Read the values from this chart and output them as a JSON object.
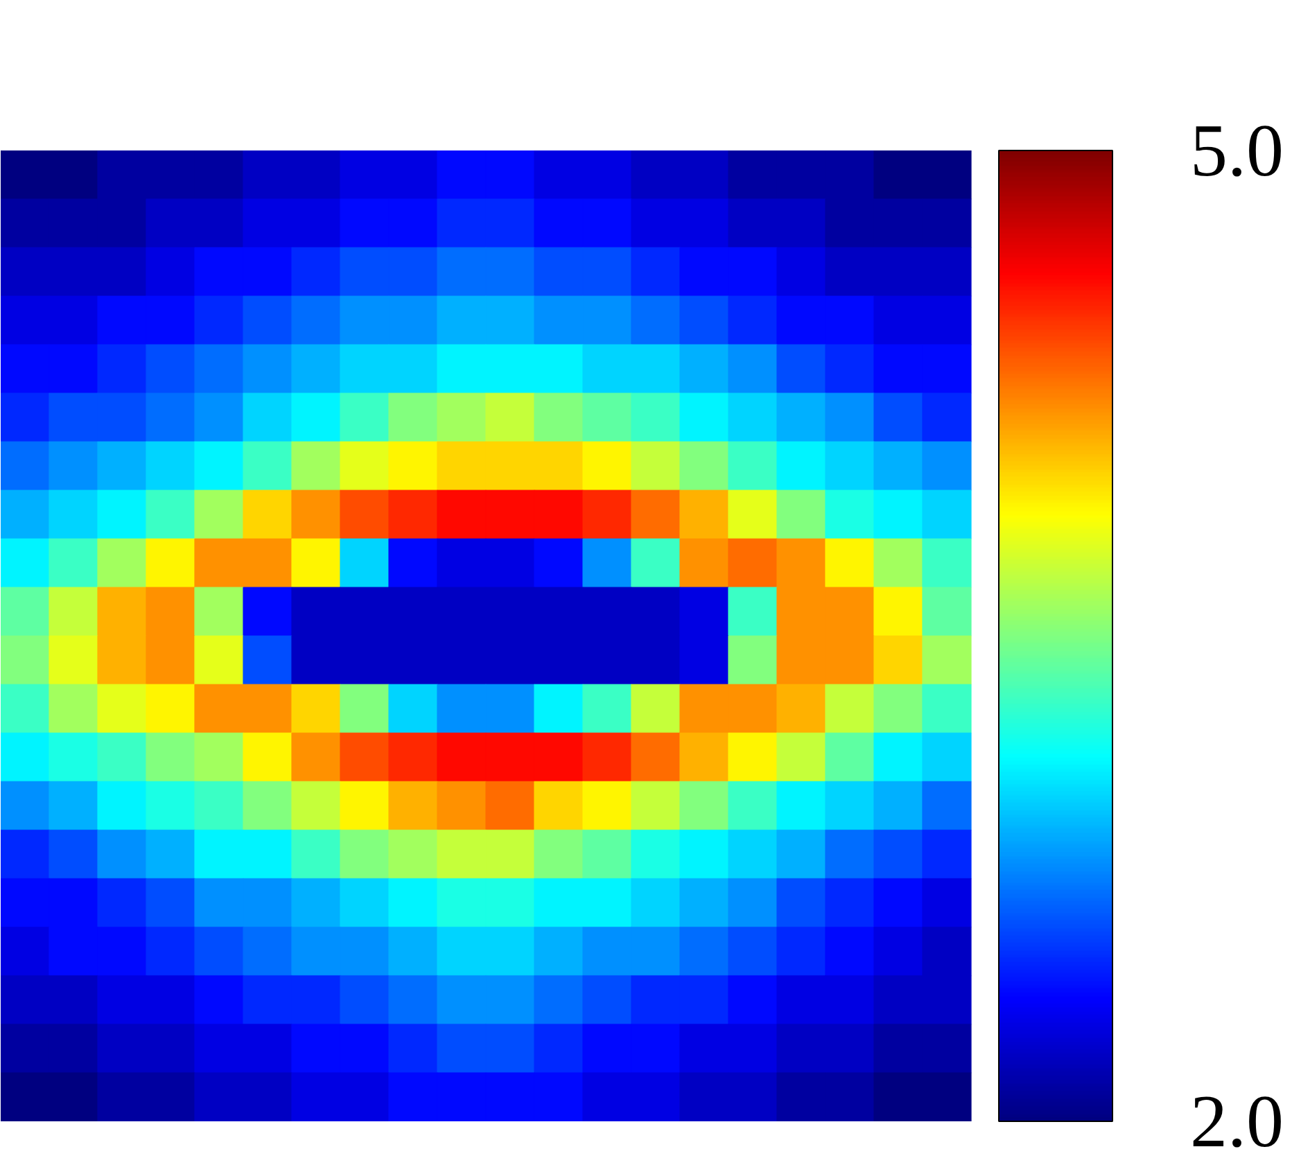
{
  "chart_data": {
    "type": "heatmap",
    "categories": [
      null,
      null,
      null,
      null,
      null,
      null,
      null,
      null,
      null,
      null,
      null,
      null,
      null,
      null,
      null,
      null,
      null,
      null,
      null,
      null
    ],
    "y_categories": [
      null,
      null,
      null,
      null,
      null,
      null,
      null,
      null,
      null,
      null,
      null,
      null,
      null,
      null,
      null,
      null,
      null,
      null,
      null,
      null
    ],
    "cells": [
      [
        2.0,
        2.0,
        2.1,
        2.1,
        2.1,
        2.2,
        2.2,
        2.3,
        2.3,
        2.4,
        2.4,
        2.3,
        2.3,
        2.2,
        2.2,
        2.1,
        2.1,
        2.1,
        2.0,
        2.0
      ],
      [
        2.1,
        2.1,
        2.1,
        2.2,
        2.2,
        2.3,
        2.3,
        2.4,
        2.4,
        2.5,
        2.5,
        2.4,
        2.4,
        2.3,
        2.3,
        2.2,
        2.2,
        2.1,
        2.1,
        2.1
      ],
      [
        2.2,
        2.2,
        2.2,
        2.3,
        2.4,
        2.4,
        2.5,
        2.6,
        2.6,
        2.7,
        2.7,
        2.6,
        2.6,
        2.5,
        2.4,
        2.4,
        2.3,
        2.2,
        2.2,
        2.2
      ],
      [
        2.3,
        2.3,
        2.4,
        2.4,
        2.5,
        2.6,
        2.7,
        2.8,
        2.8,
        2.9,
        2.9,
        2.8,
        2.8,
        2.7,
        2.6,
        2.5,
        2.4,
        2.4,
        2.3,
        2.3
      ],
      [
        2.4,
        2.4,
        2.5,
        2.6,
        2.7,
        2.8,
        2.9,
        3.0,
        3.0,
        3.1,
        3.1,
        3.1,
        3.0,
        3.0,
        2.9,
        2.8,
        2.6,
        2.5,
        2.4,
        2.4
      ],
      [
        2.5,
        2.6,
        2.6,
        2.7,
        2.8,
        3.0,
        3.1,
        3.3,
        3.5,
        3.6,
        3.7,
        3.5,
        3.4,
        3.3,
        3.1,
        3.0,
        2.9,
        2.8,
        2.6,
        2.5
      ],
      [
        2.7,
        2.8,
        2.9,
        3.0,
        3.1,
        3.3,
        3.6,
        3.8,
        3.9,
        4.0,
        4.0,
        4.0,
        3.9,
        3.7,
        3.5,
        3.3,
        3.1,
        3.0,
        2.9,
        2.8
      ],
      [
        2.9,
        3.0,
        3.1,
        3.3,
        3.6,
        4.0,
        4.2,
        4.4,
        4.5,
        4.6,
        4.6,
        4.6,
        4.5,
        4.3,
        4.1,
        3.8,
        3.5,
        3.2,
        3.1,
        3.0
      ],
      [
        3.1,
        3.3,
        3.6,
        3.9,
        4.2,
        4.2,
        3.9,
        3.0,
        2.4,
        2.3,
        2.3,
        2.4,
        2.8,
        3.3,
        4.2,
        4.3,
        4.2,
        3.9,
        3.6,
        3.3
      ],
      [
        3.4,
        3.7,
        4.1,
        4.2,
        3.6,
        2.4,
        2.2,
        2.2,
        2.2,
        2.2,
        2.2,
        2.2,
        2.2,
        2.2,
        2.3,
        3.3,
        4.2,
        4.2,
        3.9,
        3.4
      ],
      [
        3.5,
        3.8,
        4.1,
        4.2,
        3.8,
        2.6,
        2.2,
        2.2,
        2.2,
        2.2,
        2.2,
        2.2,
        2.2,
        2.2,
        2.3,
        3.5,
        4.2,
        4.2,
        4.0,
        3.6
      ],
      [
        3.3,
        3.6,
        3.8,
        3.9,
        4.2,
        4.2,
        4.0,
        3.5,
        3.0,
        2.8,
        2.8,
        3.1,
        3.3,
        3.7,
        4.2,
        4.2,
        4.1,
        3.7,
        3.5,
        3.3
      ],
      [
        3.1,
        3.2,
        3.3,
        3.5,
        3.6,
        3.9,
        4.2,
        4.4,
        4.5,
        4.6,
        4.6,
        4.6,
        4.5,
        4.3,
        4.1,
        3.9,
        3.7,
        3.4,
        3.1,
        3.0
      ],
      [
        2.8,
        2.9,
        3.1,
        3.2,
        3.3,
        3.5,
        3.7,
        3.9,
        4.1,
        4.2,
        4.3,
        4.0,
        3.9,
        3.7,
        3.5,
        3.3,
        3.1,
        3.0,
        2.9,
        2.7
      ],
      [
        2.5,
        2.6,
        2.8,
        2.9,
        3.1,
        3.1,
        3.3,
        3.5,
        3.6,
        3.7,
        3.7,
        3.5,
        3.4,
        3.2,
        3.1,
        3.0,
        2.9,
        2.7,
        2.6,
        2.5
      ],
      [
        2.4,
        2.4,
        2.5,
        2.6,
        2.8,
        2.8,
        2.9,
        3.0,
        3.1,
        3.2,
        3.2,
        3.1,
        3.1,
        3.0,
        2.9,
        2.8,
        2.6,
        2.5,
        2.4,
        2.3
      ],
      [
        2.3,
        2.4,
        2.4,
        2.5,
        2.6,
        2.7,
        2.8,
        2.8,
        2.9,
        3.0,
        3.0,
        2.9,
        2.8,
        2.8,
        2.7,
        2.6,
        2.5,
        2.4,
        2.3,
        2.2
      ],
      [
        2.2,
        2.2,
        2.3,
        2.3,
        2.4,
        2.5,
        2.5,
        2.6,
        2.7,
        2.8,
        2.8,
        2.7,
        2.6,
        2.5,
        2.5,
        2.4,
        2.3,
        2.3,
        2.2,
        2.2
      ],
      [
        2.1,
        2.1,
        2.2,
        2.2,
        2.3,
        2.3,
        2.4,
        2.4,
        2.5,
        2.6,
        2.6,
        2.5,
        2.4,
        2.4,
        2.3,
        2.3,
        2.2,
        2.2,
        2.1,
        2.1
      ],
      [
        2.0,
        2.0,
        2.1,
        2.1,
        2.2,
        2.2,
        2.3,
        2.3,
        2.4,
        2.4,
        2.4,
        2.4,
        2.3,
        2.3,
        2.2,
        2.2,
        2.1,
        2.1,
        2.0,
        2.0
      ]
    ],
    "clim": [
      2,
      5
    ],
    "cticks": [
      {
        "value": 2,
        "label": "2.0"
      },
      {
        "value": 5,
        "label": "5.0"
      }
    ],
    "tick_labels": false
  }
}
